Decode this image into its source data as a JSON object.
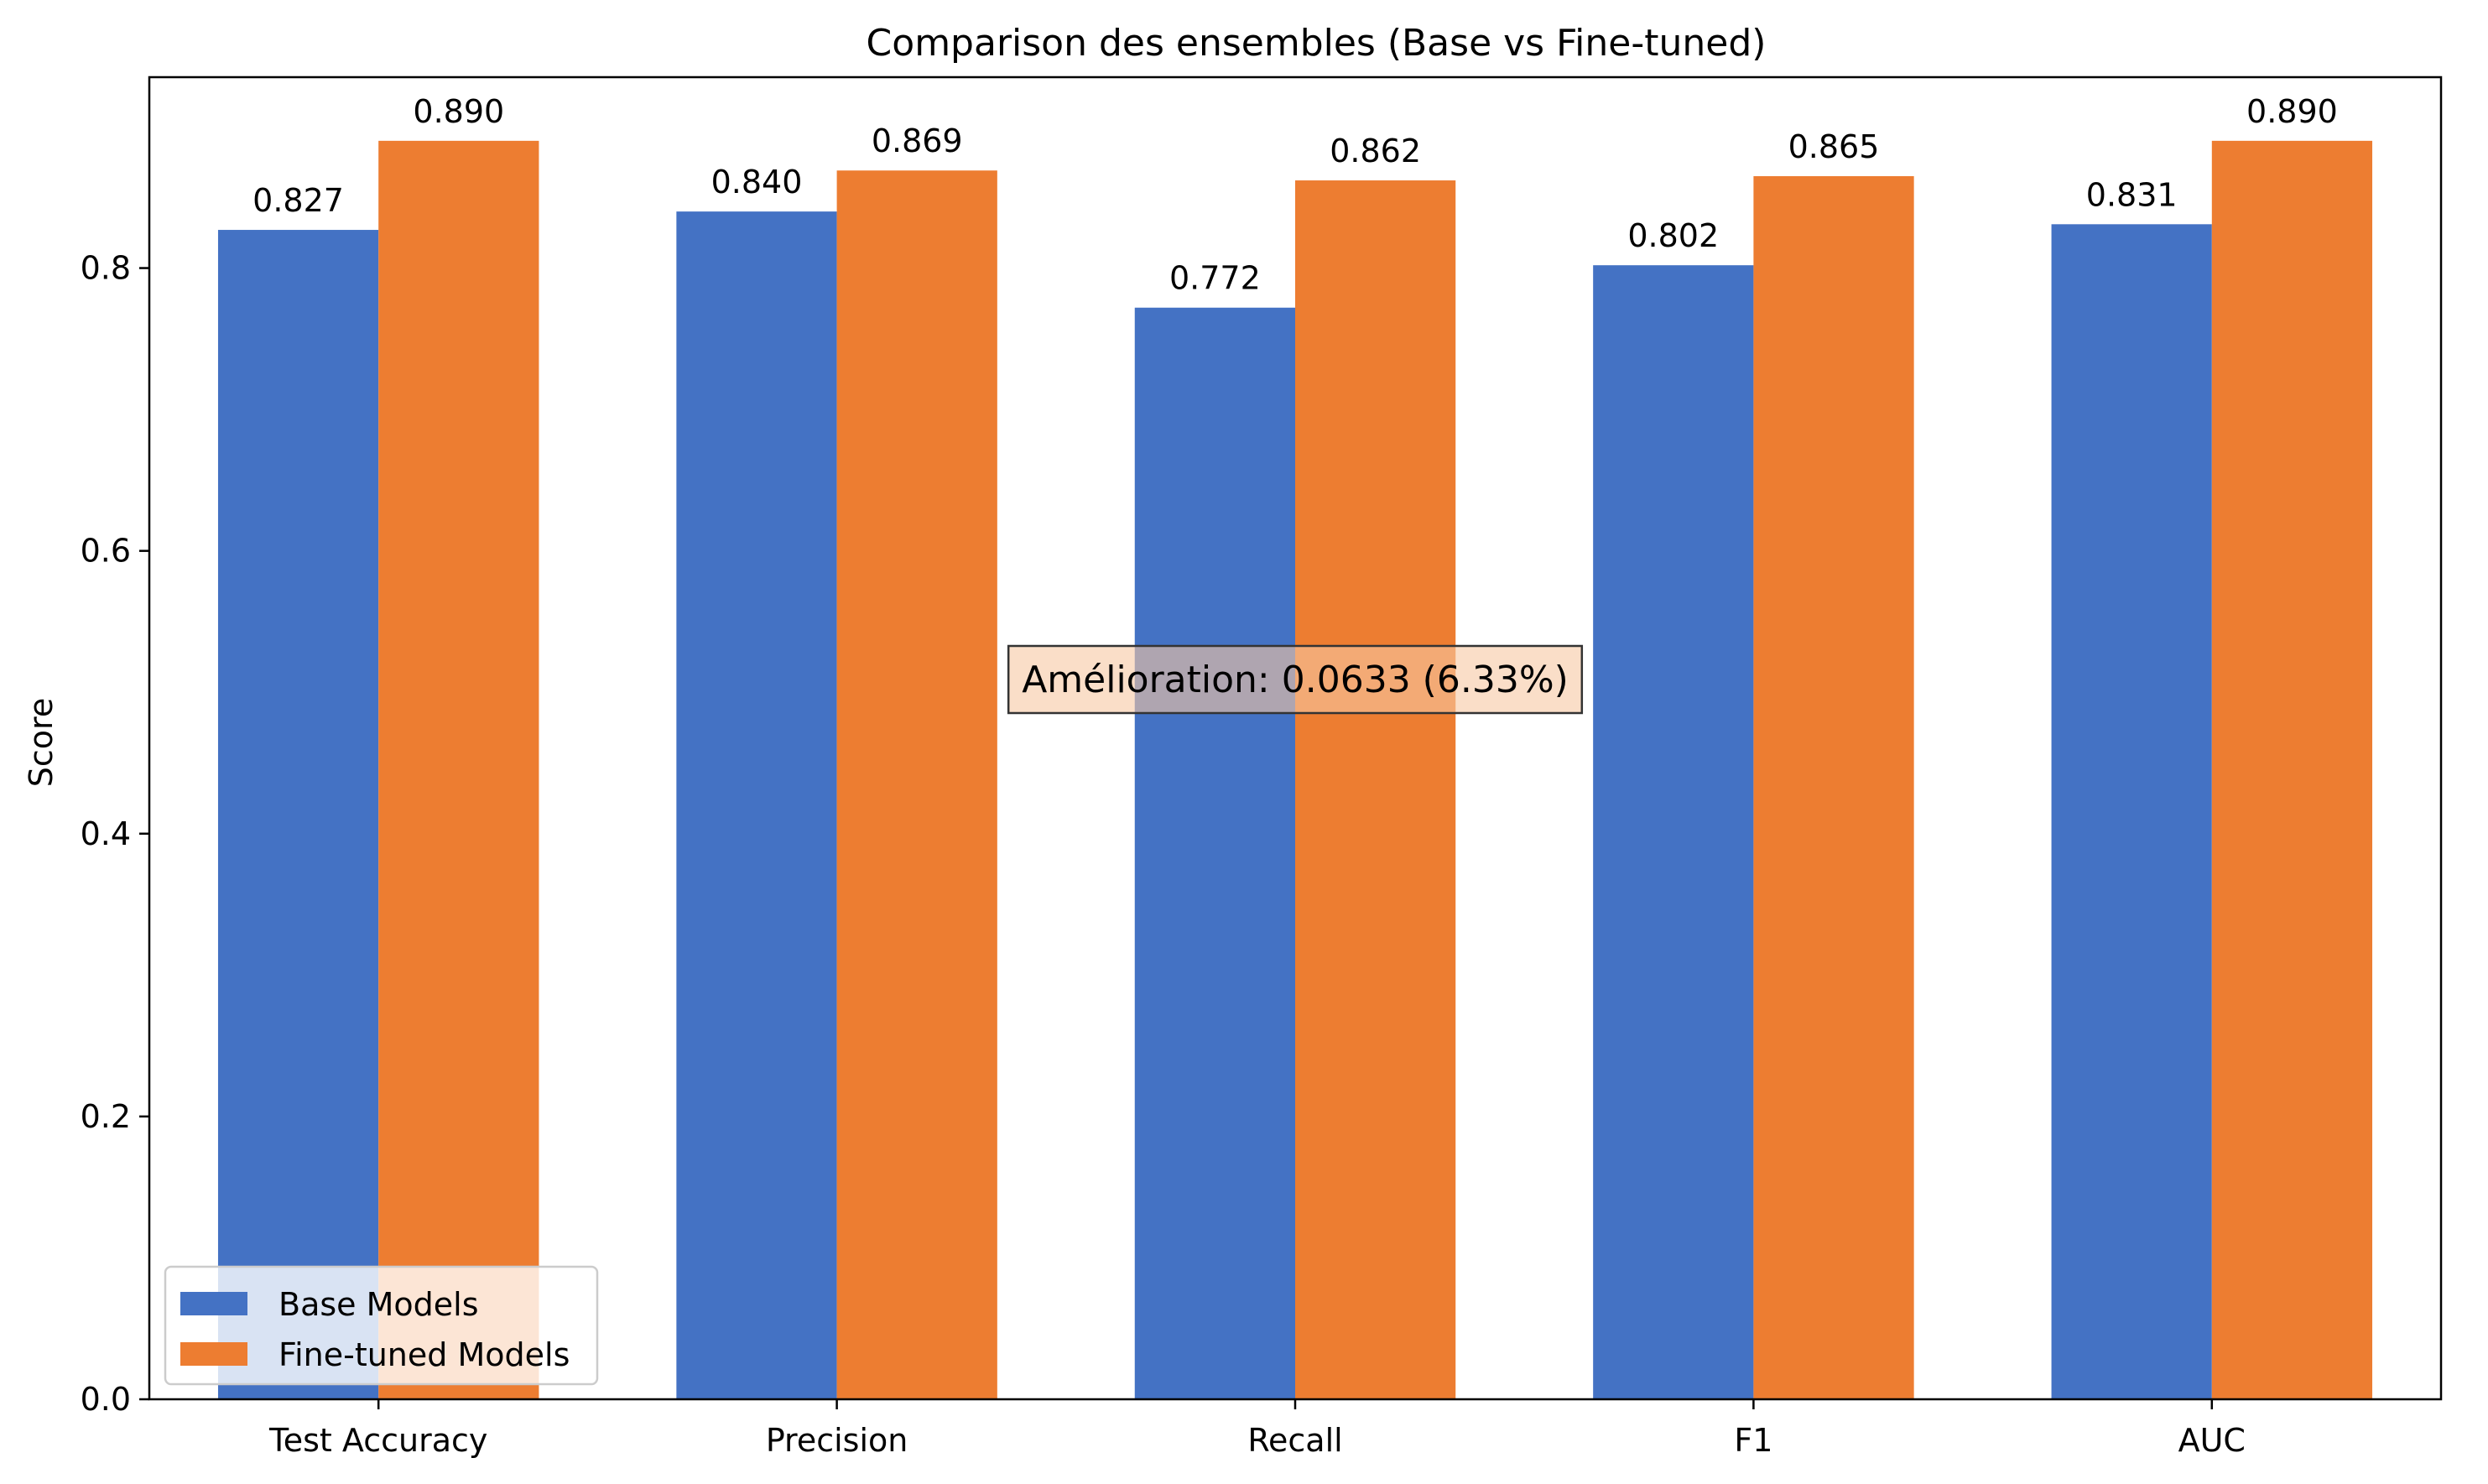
{
  "chart_data": {
    "type": "bar",
    "title": "Comparison des ensembles (Base vs Fine-tuned)",
    "xlabel": "",
    "ylabel": "Score",
    "categories": [
      "Test Accuracy",
      "Precision",
      "Recall",
      "F1",
      "AUC"
    ],
    "series": [
      {
        "name": "Base Models",
        "color": "#4472c4",
        "values": [
          0.827,
          0.84,
          0.772,
          0.802,
          0.831
        ],
        "labels": [
          "0.827",
          "0.840",
          "0.772",
          "0.802",
          "0.831"
        ]
      },
      {
        "name": "Fine-tuned Models",
        "color": "#ed7d31",
        "values": [
          0.89,
          0.869,
          0.862,
          0.865,
          0.89
        ],
        "labels": [
          "0.890",
          "0.869",
          "0.862",
          "0.865",
          "0.890"
        ]
      }
    ],
    "ylim": [
      0,
      0.935
    ],
    "yticks": [
      0.0,
      0.2,
      0.4,
      0.6,
      0.8
    ],
    "ytick_labels": [
      "0.0",
      "0.2",
      "0.4",
      "0.6",
      "0.8"
    ],
    "grid": false,
    "legend_position": "lower-left",
    "annotation": {
      "text": "Amélioration: 0.0633 (6.33%)",
      "background": "#f7c8a4"
    }
  }
}
